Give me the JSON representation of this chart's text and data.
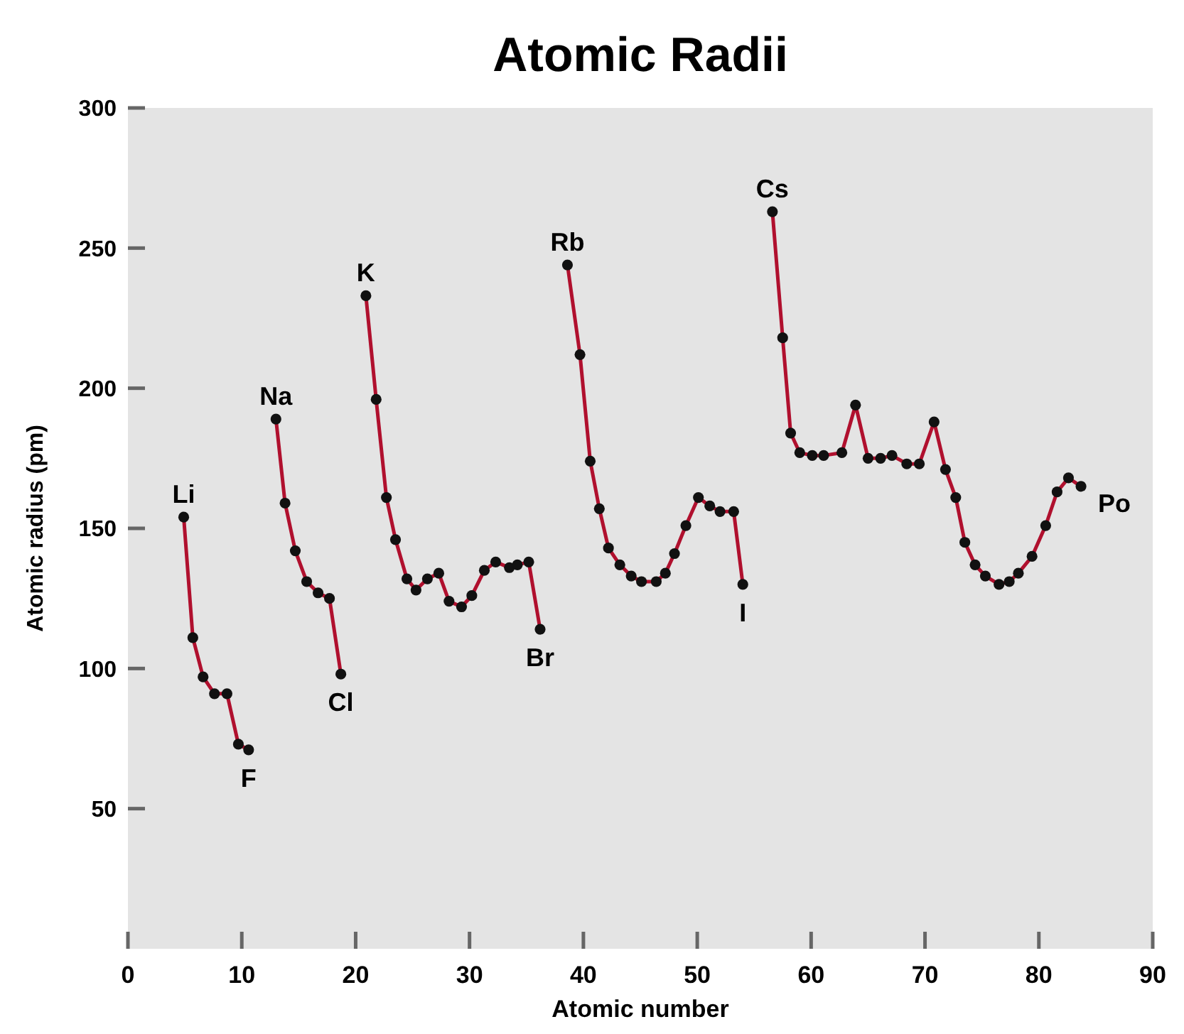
{
  "chart_data": {
    "type": "line",
    "title": "Atomic Radii",
    "xlabel": "Atomic number",
    "ylabel": "Atomic radius (pm)",
    "xlim": [
      0,
      90
    ],
    "xticks": [
      0,
      10,
      20,
      30,
      40,
      50,
      60,
      70,
      80,
      90
    ],
    "ylim": [
      0,
      300
    ],
    "yticks": [
      50,
      100,
      150,
      200,
      250,
      300
    ],
    "marker": "circle",
    "line_style": "solid",
    "grid": false,
    "series": [
      {
        "color": "#b0102e",
        "x": [
          4.9,
          5.7,
          6.6,
          7.6,
          8.7,
          9.7,
          10.6
        ],
        "values": [
          154,
          111,
          97,
          91,
          91,
          73,
          71
        ]
      },
      {
        "color": "#b0102e",
        "x": [
          13.0,
          13.8,
          14.7,
          15.7,
          16.7,
          17.7,
          18.7
        ],
        "values": [
          189,
          159,
          142,
          131,
          127,
          125,
          98
        ]
      },
      {
        "color": "#b0102e",
        "x": [
          20.9,
          21.8,
          22.7,
          23.5,
          24.5,
          25.3,
          26.3,
          27.3,
          28.2,
          29.3,
          30.2,
          31.3,
          32.3,
          33.5,
          34.2,
          35.2,
          36.2
        ],
        "values": [
          233,
          196,
          161,
          146,
          132,
          128,
          132,
          134,
          124,
          122,
          126,
          135,
          138,
          136,
          137,
          138,
          114
        ]
      },
      {
        "color": "#b0102e",
        "x": [
          38.6,
          39.7,
          40.6,
          41.4,
          42.2,
          43.2,
          44.2,
          45.1,
          46.4,
          47.2,
          48.0,
          49.0,
          50.1,
          51.1,
          52.0,
          53.2,
          54.0
        ],
        "values": [
          244,
          212,
          174,
          157,
          143,
          137,
          133,
          131,
          131,
          134,
          141,
          151,
          161,
          158,
          156,
          156,
          130
        ]
      },
      {
        "color": "#b0102e",
        "x": [
          56.6,
          57.5,
          58.2,
          59.0,
          60.1,
          61.1,
          62.7,
          63.9,
          65.0,
          66.1,
          67.1,
          68.4,
          69.5,
          70.8,
          71.8,
          72.7,
          73.5,
          74.4,
          75.3,
          76.5,
          77.4,
          78.2,
          79.4,
          80.6,
          81.6,
          82.6,
          83.7
        ],
        "values": [
          263,
          218,
          184,
          177,
          176,
          176,
          177,
          194,
          175,
          175,
          176,
          173,
          173,
          188,
          171,
          161,
          145,
          137,
          133,
          130,
          131,
          134,
          140,
          151,
          163,
          168,
          165
        ]
      }
    ],
    "annotations": [
      {
        "text": "Li",
        "x": 4.9,
        "y": 154
      },
      {
        "text": "F",
        "x": 10.6,
        "y": 71
      },
      {
        "text": "Na",
        "x": 13.0,
        "y": 189
      },
      {
        "text": "Cl",
        "x": 18.7,
        "y": 98
      },
      {
        "text": "K",
        "x": 20.9,
        "y": 233
      },
      {
        "text": "Br",
        "x": 36.2,
        "y": 114
      },
      {
        "text": "Rb",
        "x": 38.6,
        "y": 244
      },
      {
        "text": "I",
        "x": 54.0,
        "y": 130
      },
      {
        "text": "Cs",
        "x": 56.6,
        "y": 263
      },
      {
        "text": "Po",
        "x": 83.7,
        "y": 165
      }
    ]
  }
}
